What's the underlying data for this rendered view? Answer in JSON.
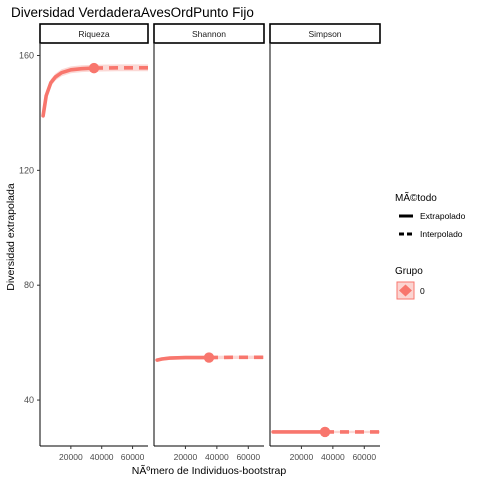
{
  "chart_data": {
    "type": "line",
    "title": "Diversidad VerdaderaAvesOrdPunto Fijo",
    "xlabel": "NÃºmero de Individuos-bootstrap",
    "ylabel": "Diversidad extrapolada",
    "ylim": [
      24,
      164
    ],
    "yticks": [
      {
        "value": 40,
        "label": "40"
      },
      {
        "value": 80,
        "label": "80"
      },
      {
        "value": 120,
        "label": "120"
      },
      {
        "value": 160,
        "label": "160"
      }
    ],
    "xlim": [
      0,
      70000
    ],
    "xticks": [
      {
        "value": 20000,
        "label": "20000"
      },
      {
        "value": 40000,
        "label": "40000"
      },
      {
        "value": 60000,
        "label": "60000"
      }
    ],
    "series_color": "#F8766D",
    "band_color": "#FBD5D2",
    "facets": [
      {
        "label": "Riqueza",
        "reference": {
          "x": 35000,
          "y": 155.6
        },
        "interpolated": [
          [
            2000,
            139
          ],
          [
            4000,
            146
          ],
          [
            7000,
            150.5
          ],
          [
            10000,
            152.5
          ],
          [
            14000,
            154
          ],
          [
            20000,
            155
          ],
          [
            27000,
            155.4
          ],
          [
            35000,
            155.6
          ]
        ],
        "extrapolated": [
          [
            35000,
            155.6
          ],
          [
            50000,
            155.7
          ],
          [
            70000,
            155.7
          ]
        ],
        "band_halfwidth": 1.2
      },
      {
        "label": "Shannon",
        "reference": {
          "x": 35000,
          "y": 54.8
        },
        "interpolated": [
          [
            2000,
            53.9
          ],
          [
            5000,
            54.3
          ],
          [
            10000,
            54.6
          ],
          [
            20000,
            54.8
          ],
          [
            35000,
            54.8
          ]
        ],
        "extrapolated": [
          [
            35000,
            54.8
          ],
          [
            50000,
            54.9
          ],
          [
            70000,
            54.9
          ]
        ],
        "band_halfwidth": 0.6
      },
      {
        "label": "Simpson",
        "reference": {
          "x": 35000,
          "y": 28.9
        },
        "interpolated": [
          [
            2000,
            28.9
          ],
          [
            35000,
            28.9
          ]
        ],
        "extrapolated": [
          [
            35000,
            28.9
          ],
          [
            70000,
            28.9
          ]
        ],
        "band_halfwidth": 0.4
      }
    ],
    "legend": {
      "method_title": "MÃ©todo",
      "method_items": [
        {
          "label": "Extrapolado",
          "linetype": "solid"
        },
        {
          "label": "Interpolado",
          "linetype": "dashed"
        }
      ],
      "group_title": "Grupo",
      "group_items": [
        {
          "label": "0"
        }
      ]
    }
  }
}
